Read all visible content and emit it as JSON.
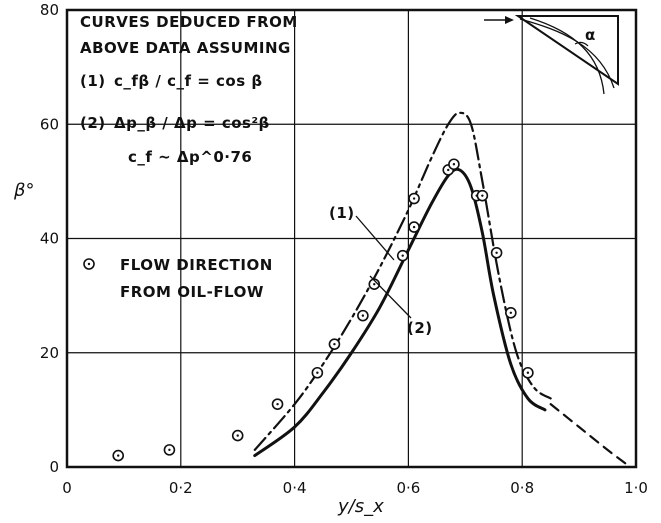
{
  "chart_data": {
    "type": "line",
    "xlabel": "y/s_x",
    "ylabel": "β°",
    "xlim": [
      0,
      1.0
    ],
    "ylim": [
      0,
      80
    ],
    "x_ticks": [
      "0",
      "0·2",
      "0·4",
      "0·6",
      "0·8",
      "1·0"
    ],
    "y_ticks": [
      "0",
      "20",
      "40",
      "60",
      "80"
    ],
    "grid": true,
    "annotations": {
      "header_line1": "CURVES DEDUCED FROM",
      "header_line2": "ABOVE DATA ASSUMING",
      "eq1_num": "(1)",
      "eq1_text": "c_fβ / c_f = cos β",
      "eq2_num": "(2)",
      "eq2_text": "Δp_β / Δp = cos²β",
      "eq3_text": "c_f ~ Δp^0·76",
      "legend_line1": "FLOW DIRECTION",
      "legend_line2": "FROM OIL-FLOW",
      "curve1_label": "(1)",
      "curve2_label": "(2)",
      "inset_angle": "α"
    },
    "series": [
      {
        "name": "(1)",
        "style": "dash-dot",
        "x": [
          0.33,
          0.4,
          0.45,
          0.5,
          0.55,
          0.6,
          0.64,
          0.67,
          0.69,
          0.71,
          0.73,
          0.76,
          0.79,
          0.82,
          0.85
        ],
        "y": [
          3,
          11,
          18,
          26,
          35,
          45,
          54,
          60,
          62,
          60,
          50,
          33,
          20,
          14,
          12
        ]
      },
      {
        "name": "(2)",
        "style": "solid",
        "x": [
          0.33,
          0.4,
          0.45,
          0.5,
          0.55,
          0.6,
          0.64,
          0.67,
          0.69,
          0.71,
          0.73,
          0.75,
          0.78,
          0.81,
          0.84
        ],
        "y": [
          2,
          7,
          13,
          20,
          28,
          38,
          46,
          51,
          52,
          49,
          41,
          30,
          18,
          12,
          10
        ]
      },
      {
        "name": "extension",
        "style": "dashed",
        "x": [
          0.85,
          0.9,
          0.95,
          0.99
        ],
        "y": [
          11,
          7,
          3,
          0
        ]
      },
      {
        "name": "FLOW DIRECTION FROM OIL-FLOW",
        "style": "markers",
        "x": [
          0.09,
          0.18,
          0.3,
          0.37,
          0.44,
          0.47,
          0.52,
          0.54,
          0.59,
          0.61,
          0.61,
          0.67,
          0.68,
          0.72,
          0.73,
          0.755,
          0.78,
          0.81
        ],
        "y": [
          2,
          3,
          5.5,
          11,
          16.5,
          21.5,
          26.5,
          32,
          37,
          42,
          47,
          52,
          53,
          47.5,
          47.5,
          37.5,
          27,
          16.5
        ]
      }
    ]
  }
}
